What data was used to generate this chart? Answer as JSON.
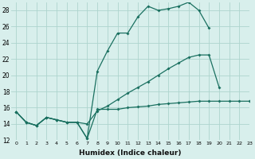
{
  "x": [
    0,
    1,
    2,
    3,
    4,
    5,
    6,
    7,
    8,
    9,
    10,
    11,
    12,
    13,
    14,
    15,
    16,
    17,
    18,
    19,
    20,
    21,
    22,
    23
  ],
  "line1": [
    15.5,
    14.2,
    13.8,
    14.8,
    14.5,
    14.2,
    14.2,
    12.2,
    20.5,
    23.0,
    25.2,
    25.2,
    27.2,
    28.5,
    28.0,
    28.2,
    28.5,
    29.0,
    28.0,
    25.8,
    null,
    null,
    null,
    null
  ],
  "line2": [
    15.5,
    14.2,
    13.8,
    14.8,
    14.5,
    14.2,
    14.2,
    14.0,
    15.6,
    16.2,
    17.0,
    17.8,
    18.5,
    19.2,
    20.0,
    20.8,
    21.5,
    22.2,
    22.5,
    22.5,
    18.5,
    null,
    null,
    null
  ],
  "line3": [
    15.5,
    14.2,
    13.8,
    14.8,
    14.5,
    14.2,
    14.2,
    12.2,
    15.8,
    15.8,
    15.8,
    16.0,
    16.1,
    16.2,
    16.4,
    16.5,
    16.6,
    16.7,
    16.8,
    16.8,
    16.8,
    16.8,
    16.8,
    16.8
  ],
  "color": "#1a7060",
  "bg_color": "#d8efec",
  "grid_color": "#aed4ce",
  "xlabel": "Humidex (Indice chaleur)",
  "ylim": [
    12,
    29
  ],
  "xlim": [
    -0.5,
    23
  ],
  "yticks": [
    12,
    14,
    16,
    18,
    20,
    22,
    24,
    26,
    28
  ],
  "xticks": [
    0,
    1,
    2,
    3,
    4,
    5,
    6,
    7,
    8,
    9,
    10,
    11,
    12,
    13,
    14,
    15,
    16,
    17,
    18,
    19,
    20,
    21,
    22,
    23
  ],
  "xtick_labels": [
    "0",
    "1",
    "2",
    "3",
    "4",
    "5",
    "6",
    "7",
    "8",
    "9",
    "10",
    "11",
    "12",
    "13",
    "14",
    "15",
    "16",
    "17",
    "18",
    "19",
    "20",
    "21",
    "22",
    "23"
  ]
}
